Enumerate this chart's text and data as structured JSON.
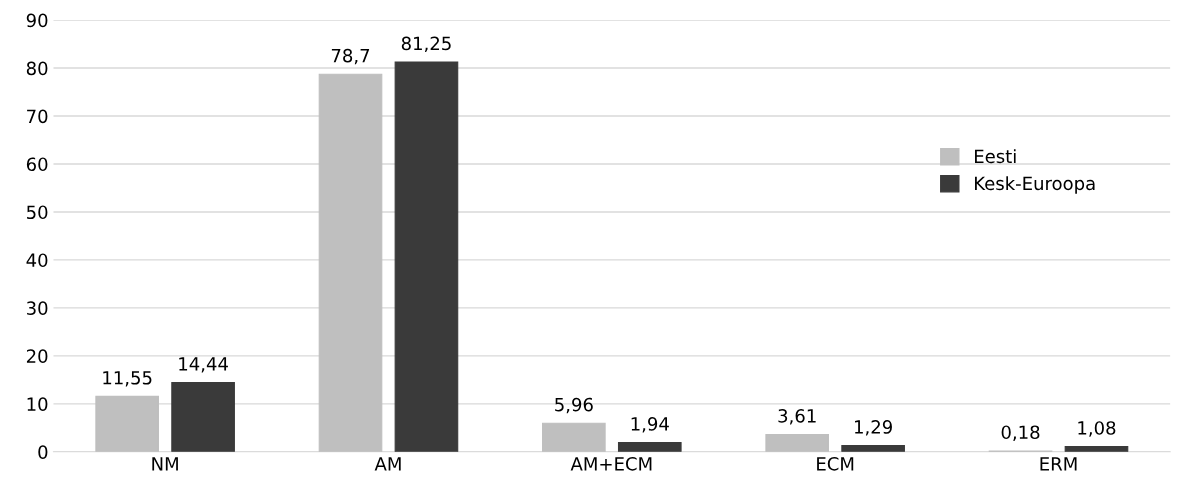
{
  "chart_data": {
    "type": "bar",
    "categories": [
      "NM",
      "AM",
      "AM+ECM",
      "ECM",
      "ERM"
    ],
    "series": [
      {
        "name": "Eesti",
        "color": "#bfbfbf",
        "values": [
          11.55,
          78.7,
          5.96,
          3.61,
          0.18
        ],
        "value_labels": [
          "11,55",
          "78,7",
          "5,96",
          "3,61",
          "0,18"
        ]
      },
      {
        "name": "Kesk-Euroopa",
        "color": "#3a3a3a",
        "values": [
          14.44,
          81.25,
          1.94,
          1.29,
          1.08
        ],
        "value_labels": [
          "14,44",
          "81,25",
          "1,94",
          "1,29",
          "1,08"
        ]
      }
    ],
    "ylim": [
      0,
      90
    ],
    "yticks": [
      0,
      10,
      20,
      30,
      40,
      50,
      60,
      70,
      80,
      90
    ],
    "grid": "y",
    "legend": "right"
  }
}
